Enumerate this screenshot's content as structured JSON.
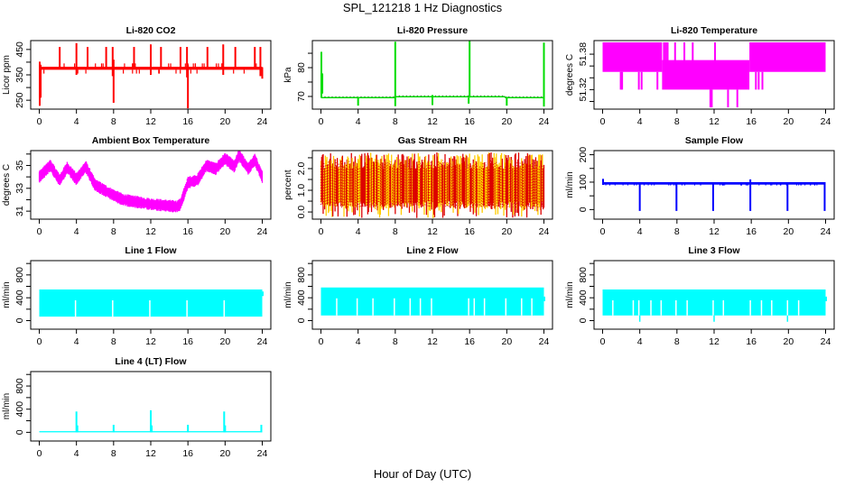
{
  "page": {
    "title": "SPL_121218  1 Hz Diagnostics",
    "xlabel": "Hour of Day (UTC)"
  },
  "chart_data": [
    {
      "type": "line",
      "title": "Li-820 CO2",
      "ylabel": "Licor ppm",
      "color": "#ff0000",
      "xlim": [
        0,
        24
      ],
      "ylim": [
        215,
        485
      ],
      "xticks": [
        0,
        4,
        8,
        12,
        16,
        20,
        24
      ],
      "yticks": [
        250,
        300,
        350,
        400,
        450
      ],
      "yticklabels": [
        "250",
        "",
        "350",
        "",
        "450"
      ],
      "band": {
        "low": 370,
        "high": 382
      },
      "spikes": [
        {
          "x": 0.05,
          "lo": 228,
          "hi": 402
        },
        {
          "x": 0.15,
          "lo": 260,
          "hi": 390
        },
        {
          "x": 2.2,
          "lo": 375,
          "hi": 460
        },
        {
          "x": 4.0,
          "lo": 350,
          "hi": 475
        },
        {
          "x": 5.2,
          "lo": 375,
          "hi": 460
        },
        {
          "x": 7.2,
          "lo": 375,
          "hi": 460
        },
        {
          "x": 7.9,
          "lo": 345,
          "hi": 460
        },
        {
          "x": 8.0,
          "lo": 240,
          "hi": 410
        },
        {
          "x": 10.2,
          "lo": 375,
          "hi": 460
        },
        {
          "x": 12.0,
          "lo": 350,
          "hi": 470
        },
        {
          "x": 13.1,
          "lo": 375,
          "hi": 460
        },
        {
          "x": 15.2,
          "lo": 375,
          "hi": 460
        },
        {
          "x": 15.9,
          "lo": 340,
          "hi": 460
        },
        {
          "x": 16.0,
          "lo": 218,
          "hi": 390
        },
        {
          "x": 18.1,
          "lo": 375,
          "hi": 460
        },
        {
          "x": 19.8,
          "lo": 350,
          "hi": 470
        },
        {
          "x": 21.1,
          "lo": 375,
          "hi": 460
        },
        {
          "x": 23.2,
          "lo": 375,
          "hi": 460
        },
        {
          "x": 23.8,
          "lo": 345,
          "hi": 460
        },
        {
          "x": 24.0,
          "lo": 335,
          "hi": 380
        }
      ]
    },
    {
      "type": "line",
      "title": "Li-820 Pressure",
      "ylabel": "kPa",
      "color": "#00dd00",
      "xlim": [
        0,
        24
      ],
      "ylim": [
        65.6,
        89.4
      ],
      "xticks": [
        0,
        4,
        8,
        12,
        16,
        20,
        24
      ],
      "yticks": [
        70,
        75,
        80,
        85
      ],
      "yticklabels": [
        "70",
        "",
        "80",
        ""
      ],
      "segments": [
        {
          "x0": 0,
          "x1": 8,
          "y": 69.6
        },
        {
          "x0": 8,
          "x1": 16,
          "y": 69.9
        },
        {
          "x0": 16,
          "x1": 19.8,
          "y": 69.9
        },
        {
          "x0": 19.8,
          "x1": 24,
          "y": 69.6
        }
      ],
      "spikes": [
        {
          "x": 0.05,
          "lo": 69.6,
          "hi": 85.5
        },
        {
          "x": 0.15,
          "lo": 71,
          "hi": 78
        },
        {
          "x": 4.0,
          "lo": 66.8,
          "hi": 69.8
        },
        {
          "x": 8.0,
          "lo": 66.6,
          "hi": 89.0
        },
        {
          "x": 12.0,
          "lo": 67.0,
          "hi": 70.5
        },
        {
          "x": 15.9,
          "lo": 67.5,
          "hi": 69.6
        },
        {
          "x": 16.0,
          "lo": 69.6,
          "hi": 89.3
        },
        {
          "x": 20.0,
          "lo": 66.8,
          "hi": 69.9
        },
        {
          "x": 24.0,
          "lo": 66.5,
          "hi": 88.7
        }
      ]
    },
    {
      "type": "line",
      "title": "Li-820 Temperature",
      "ylabel": "degrees C",
      "color": "#ff00ff",
      "xlim": [
        0,
        24
      ],
      "ylim": [
        51.287,
        51.403
      ],
      "xticks": [
        0,
        4,
        8,
        12,
        16,
        20,
        24
      ],
      "yticks": [
        51.3,
        51.32,
        51.34,
        51.36,
        51.38
      ],
      "yticklabels": [
        "",
        "51.32",
        "",
        "",
        "51.38"
      ],
      "quantized_levels": [
        51.29,
        51.32,
        51.35,
        51.37,
        51.4
      ],
      "blocks": [
        {
          "x0": 0,
          "x1": 6.4,
          "lo": 51.35,
          "hi": 51.4
        },
        {
          "x0": 6.4,
          "x1": 15.8,
          "lo": 51.32,
          "hi": 51.37
        },
        {
          "x0": 15.8,
          "x1": 24,
          "lo": 51.35,
          "hi": 51.4
        }
      ],
      "spikes": [
        {
          "x": 1.95,
          "lo": 51.32,
          "hi": 51.35
        },
        {
          "x": 2.1,
          "lo": 51.32,
          "hi": 51.35
        },
        {
          "x": 3.9,
          "lo": 51.32,
          "hi": 51.35
        },
        {
          "x": 4.2,
          "lo": 51.32,
          "hi": 51.35
        },
        {
          "x": 5.9,
          "lo": 51.32,
          "hi": 51.35
        },
        {
          "x": 6.6,
          "lo": 51.35,
          "hi": 51.4
        },
        {
          "x": 6.8,
          "lo": 51.35,
          "hi": 51.4
        },
        {
          "x": 7.0,
          "lo": 51.35,
          "hi": 51.4
        },
        {
          "x": 7.8,
          "lo": 51.35,
          "hi": 51.4
        },
        {
          "x": 8.8,
          "lo": 51.35,
          "hi": 51.4
        },
        {
          "x": 9.7,
          "lo": 51.35,
          "hi": 51.4
        },
        {
          "x": 11.6,
          "lo": 51.29,
          "hi": 51.32
        },
        {
          "x": 11.75,
          "lo": 51.29,
          "hi": 51.32
        },
        {
          "x": 12.1,
          "lo": 51.35,
          "hi": 51.4
        },
        {
          "x": 13.5,
          "lo": 51.29,
          "hi": 51.32
        },
        {
          "x": 14.5,
          "lo": 51.29,
          "hi": 51.32
        },
        {
          "x": 16.5,
          "lo": 51.32,
          "hi": 51.35
        },
        {
          "x": 16.8,
          "lo": 51.32,
          "hi": 51.35
        },
        {
          "x": 17.2,
          "lo": 51.32,
          "hi": 51.35
        }
      ]
    },
    {
      "type": "line",
      "title": "Ambient Box Temperature",
      "ylabel": "degrees C",
      "color": "#ff00ff",
      "xlim": [
        0,
        24
      ],
      "ylim": [
        30.3,
        36.3
      ],
      "xticks": [
        0,
        4,
        8,
        12,
        16,
        20,
        24
      ],
      "yticks": [
        31,
        32,
        33,
        34,
        35,
        36
      ],
      "yticklabels": [
        "31",
        "",
        "33",
        "",
        "35",
        ""
      ],
      "trend": {
        "x": [
          0,
          1.2,
          2.2,
          3.0,
          4.0,
          5.0,
          6.0,
          7.5,
          9.0,
          10.5,
          12.0,
          13.5,
          14.8,
          15.2,
          16.0,
          17.0,
          18.0,
          19.0,
          20.0,
          21.0,
          21.5,
          22.5,
          23.2,
          24.0
        ],
        "y": [
          34.0,
          35.0,
          33.7,
          34.8,
          33.8,
          34.9,
          33.3,
          32.6,
          32.0,
          31.8,
          31.6,
          31.5,
          31.4,
          31.6,
          33.5,
          33.7,
          35.0,
          34.7,
          35.6,
          34.9,
          35.9,
          34.7,
          35.5,
          34.0
        ]
      },
      "band_halfwidth": 0.45
    },
    {
      "type": "line",
      "title": "Gas Stream RH",
      "ylabel": "percent",
      "color": "#ffcc00",
      "color2": "#dd0000",
      "xlim": [
        0,
        24
      ],
      "ylim": [
        -0.33,
        2.83
      ],
      "xticks": [
        0,
        4,
        8,
        12,
        16,
        20,
        24
      ],
      "yticks": [
        0.0,
        0.5,
        1.0,
        1.5,
        2.0,
        2.5
      ],
      "yticklabels": [
        "0.0",
        "",
        "1.0",
        "",
        "2.0",
        ""
      ],
      "band": {
        "core_low": 0.5,
        "core_high": 2.0,
        "min": -0.3,
        "max": 2.75
      }
    },
    {
      "type": "line",
      "title": "Sample Flow",
      "ylabel": "ml/min",
      "color": "#0000ff",
      "xlim": [
        0,
        24
      ],
      "ylim": [
        -35,
        215
      ],
      "xticks": [
        0,
        4,
        8,
        12,
        16,
        20,
        24
      ],
      "yticks": [
        0,
        50,
        100,
        150,
        200
      ],
      "yticklabels": [
        "0",
        "",
        "100",
        "",
        "200"
      ],
      "band": {
        "low": 91,
        "high": 100
      },
      "spikes": [
        {
          "x": 0.05,
          "lo": 90,
          "hi": 112
        },
        {
          "x": 4.0,
          "lo": -5,
          "hi": 100
        },
        {
          "x": 7.95,
          "lo": -5,
          "hi": 100
        },
        {
          "x": 11.9,
          "lo": -5,
          "hi": 100
        },
        {
          "x": 15.9,
          "lo": -5,
          "hi": 110
        },
        {
          "x": 19.9,
          "lo": -5,
          "hi": 100
        },
        {
          "x": 23.9,
          "lo": -5,
          "hi": 100
        }
      ]
    },
    {
      "type": "line",
      "title": "Line 1 Flow",
      "ylabel": "ml/min",
      "color": "#00ffff",
      "xlim": [
        0,
        24
      ],
      "ylim": [
        -150,
        1050
      ],
      "xticks": [
        0,
        4,
        8,
        12,
        16,
        20,
        24
      ],
      "yticks": [
        0,
        200,
        400,
        600,
        800,
        1000
      ],
      "yticklabels": [
        "0",
        "",
        "400",
        "",
        "800",
        ""
      ],
      "band": {
        "low": 70,
        "high": 545
      },
      "gaps": [
        3.9,
        7.9,
        11.9,
        15.9,
        19.9
      ],
      "end_value": 470
    },
    {
      "type": "line",
      "title": "Line 2 Flow",
      "ylabel": "ml/min",
      "color": "#00ffff",
      "xlim": [
        0,
        24
      ],
      "ylim": [
        -150,
        1050
      ],
      "xticks": [
        0,
        4,
        8,
        12,
        16,
        20,
        24
      ],
      "yticks": [
        0,
        200,
        400,
        600,
        800,
        1000
      ],
      "yticklabels": [
        "0",
        "",
        "400",
        "",
        "800",
        ""
      ],
      "band": {
        "low": 90,
        "high": 580
      },
      "gaps": [
        1.7,
        3.9,
        5.6,
        7.9,
        9.6,
        10.7,
        11.9,
        15.9,
        16.5,
        17.6,
        19.9,
        21.6,
        22.7
      ],
      "end_value": 380
    },
    {
      "type": "line",
      "title": "Line 3 Flow",
      "ylabel": "ml/min",
      "color": "#00ffff",
      "xlim": [
        0,
        24
      ],
      "ylim": [
        -150,
        1050
      ],
      "xticks": [
        0,
        4,
        8,
        12,
        16,
        20,
        24
      ],
      "yticks": [
        0,
        200,
        400,
        600,
        800,
        1000
      ],
      "yticklabels": [
        "0",
        "",
        "400",
        "",
        "800",
        ""
      ],
      "band": {
        "low": 90,
        "high": 545
      },
      "gaps": [
        1.1,
        3.3,
        3.9,
        5.2,
        6.3,
        7.9,
        9.1,
        11.9,
        13.0,
        15.9,
        17.1,
        18.2,
        19.9,
        21.1
      ],
      "dips": [
        4.0,
        12.0,
        19.9
      ],
      "end_value": 380
    },
    {
      "type": "line",
      "title": "Line 4 (LT) Flow",
      "ylabel": "ml/min",
      "color": "#00ffff",
      "xlim": [
        0,
        24
      ],
      "ylim": [
        -150,
        1050
      ],
      "xticks": [
        0,
        4,
        8,
        12,
        16,
        20,
        24
      ],
      "yticks": [
        0,
        200,
        400,
        600,
        800,
        1000
      ],
      "yticklabels": [
        "0",
        "",
        "400",
        "",
        "800",
        ""
      ],
      "band": {
        "low": 0,
        "high": 20
      },
      "spikes": [
        {
          "x": 4.0,
          "lo": 0,
          "hi": 360
        },
        {
          "x": 4.1,
          "lo": 0,
          "hi": 120
        },
        {
          "x": 8.0,
          "lo": 0,
          "hi": 130
        },
        {
          "x": 12.0,
          "lo": 0,
          "hi": 380
        },
        {
          "x": 12.1,
          "lo": 0,
          "hi": 120
        },
        {
          "x": 16.0,
          "lo": 0,
          "hi": 130
        },
        {
          "x": 19.9,
          "lo": 0,
          "hi": 360
        },
        {
          "x": 20.0,
          "lo": 0,
          "hi": 120
        },
        {
          "x": 23.9,
          "lo": 0,
          "hi": 130
        }
      ]
    }
  ]
}
